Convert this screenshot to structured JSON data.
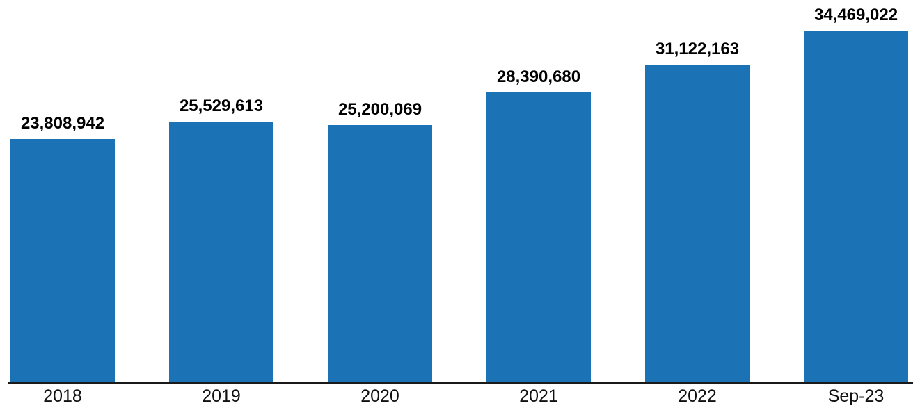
{
  "chart_data": {
    "type": "bar",
    "title": "",
    "xlabel": "",
    "ylabel": "",
    "categories": [
      "2018",
      "2019",
      "2020",
      "2021",
      "2022",
      "Sep-23"
    ],
    "values": [
      23808942,
      25529613,
      25200069,
      28390680,
      31122163,
      34469022
    ],
    "value_labels": [
      "23,808,942",
      "25,529,613",
      "25,200,069",
      "28,390,680",
      "31,122,163",
      "34,469,022"
    ],
    "ylim": [
      0,
      37500000
    ],
    "grid": false,
    "legend": "none",
    "y_axis_visible": false,
    "data_labels_position": "above-bar",
    "colors": {
      "bar": "#1B72B5",
      "axis_line": "#1a1a1a",
      "data_label": "#000000",
      "tick_label": "#111111",
      "background": "#ffffff"
    }
  }
}
